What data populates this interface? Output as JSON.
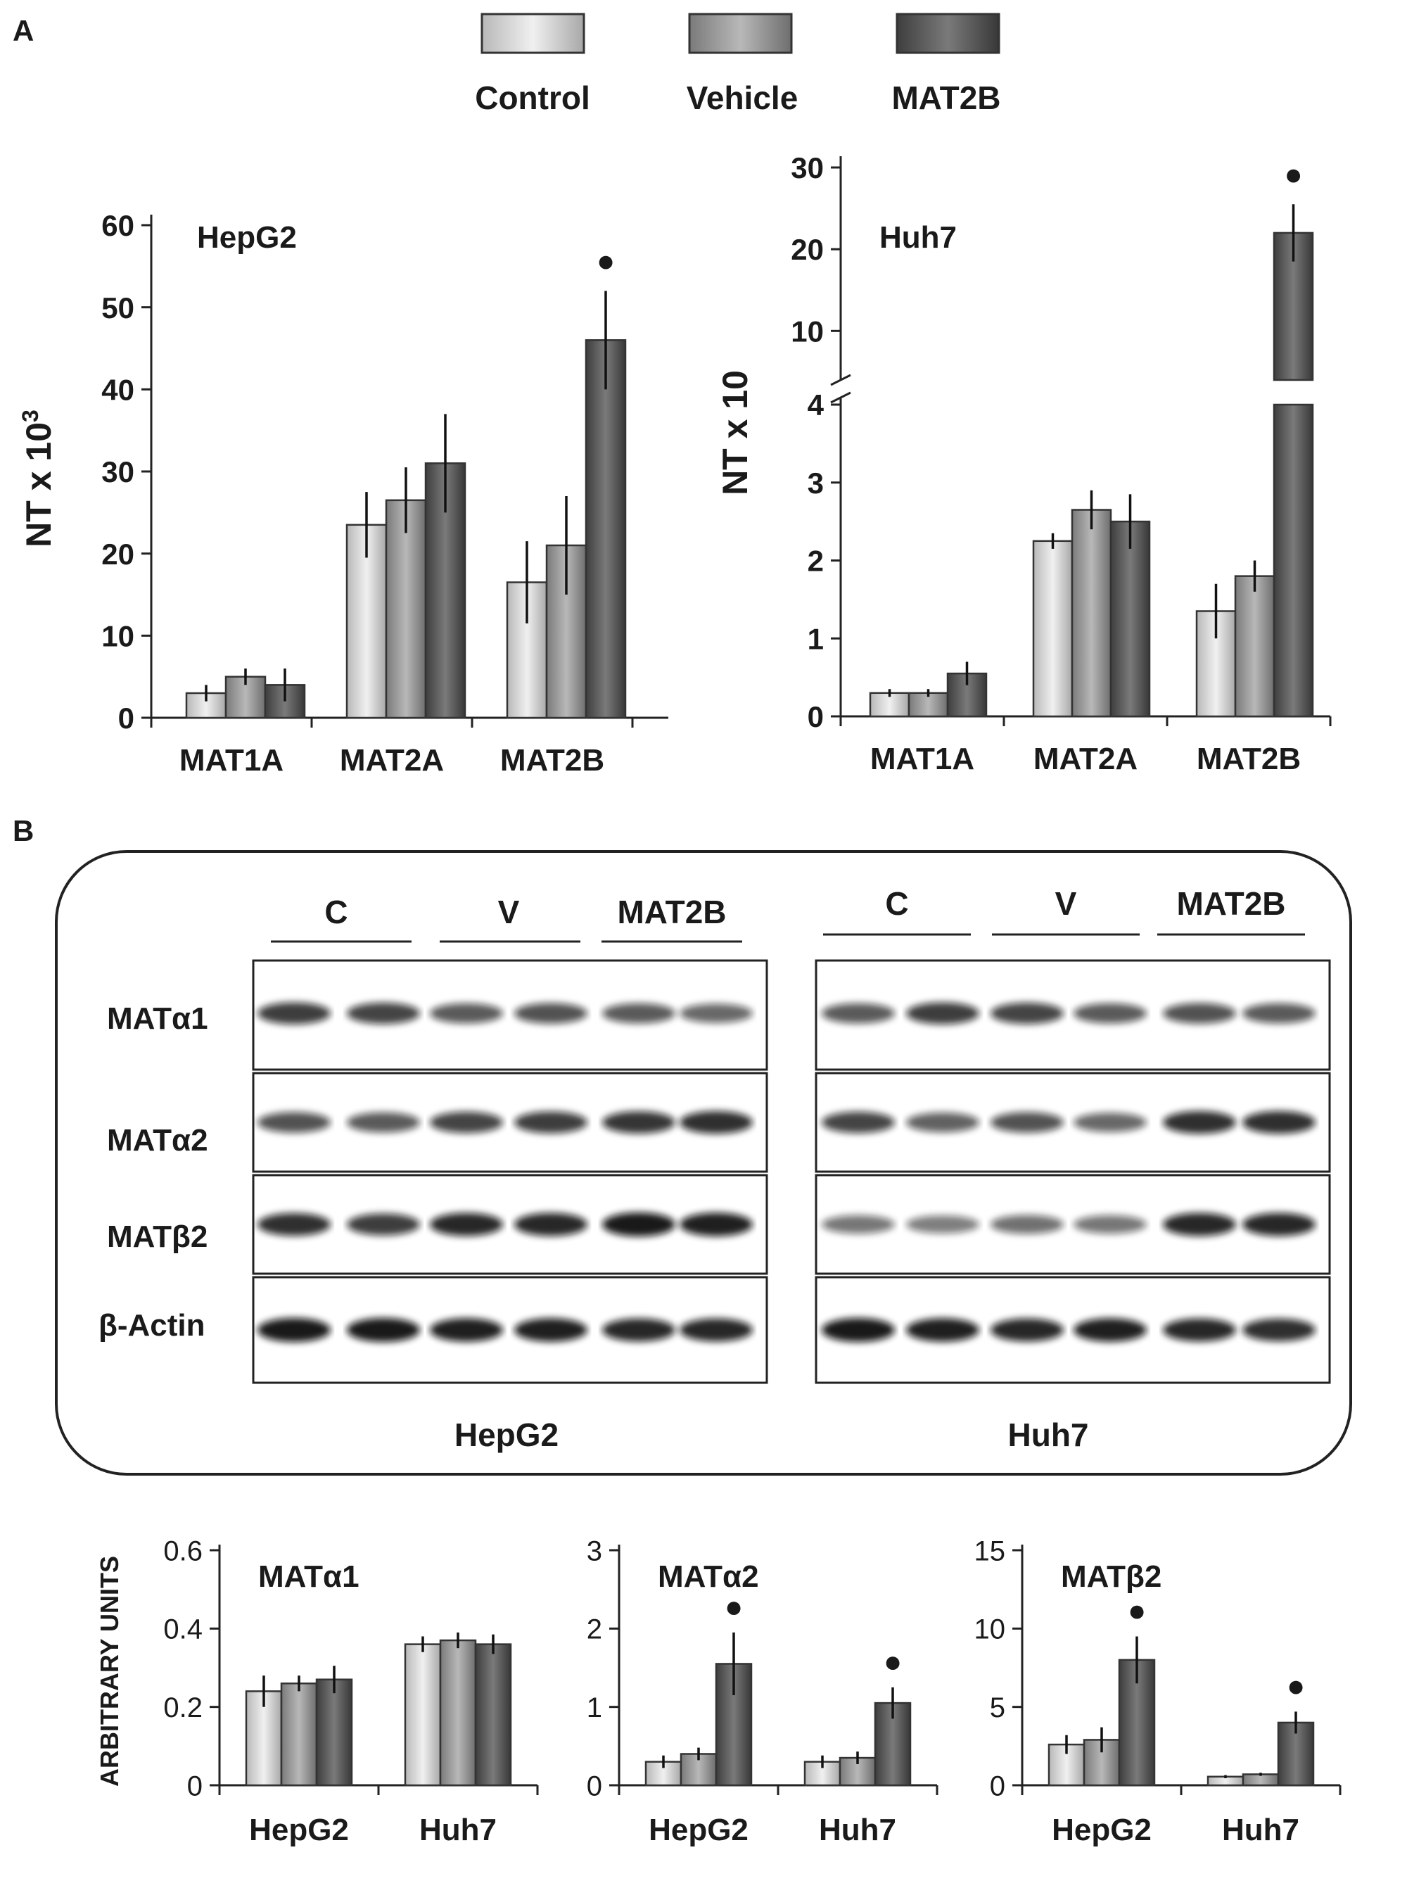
{
  "panel_labels": {
    "a": "A",
    "b": "B"
  },
  "legend": [
    {
      "label": "Control",
      "color": "#d8d8d8"
    },
    {
      "label": "Vehicle",
      "color": "#a6a6a6"
    },
    {
      "label": "MAT2B",
      "color": "#676767"
    }
  ],
  "significance_marker": "●",
  "blot": {
    "hepg2_group_labels": [
      "C",
      "V",
      "MAT2B"
    ],
    "huh7_group_labels": [
      "C",
      "V",
      "MAT2B"
    ],
    "row_labels": [
      "MATα1",
      "MATα2",
      "MATβ2",
      "β-Actin"
    ],
    "cell_labels": [
      "HepG2",
      "Huh7"
    ]
  },
  "chart_data": [
    {
      "type": "bar",
      "id": "hepg2_mrna",
      "title": "HepG2",
      "ylabel": "NT x 10",
      "ylabel_sup": "3",
      "categories": [
        "MAT1A",
        "MAT2A",
        "MAT2B"
      ],
      "ylim": [
        0,
        60
      ],
      "yticks": [
        "0",
        "10",
        "20",
        "30",
        "40",
        "50",
        "60"
      ],
      "series": [
        {
          "name": "Control",
          "values": [
            3,
            23.5,
            16.5
          ],
          "errors": [
            1,
            4,
            5
          ]
        },
        {
          "name": "Vehicle",
          "values": [
            5,
            26.5,
            21
          ],
          "errors": [
            1,
            4,
            6
          ]
        },
        {
          "name": "MAT2B",
          "values": [
            4,
            31,
            46
          ],
          "errors": [
            2,
            6,
            6
          ]
        }
      ],
      "significant": [
        [
          2,
          2
        ]
      ]
    },
    {
      "type": "bar",
      "id": "huh7_mrna",
      "title": "Huh7",
      "ylabel": "NT x 10",
      "categories": [
        "MAT1A",
        "MAT2A",
        "MAT2B"
      ],
      "broken_axis": true,
      "lower_ylim": [
        0,
        4
      ],
      "upper_ylim": [
        4,
        30
      ],
      "yticks_lower": [
        "0",
        "1",
        "2",
        "3",
        "4"
      ],
      "yticks_upper": [
        "10",
        "20",
        "30"
      ],
      "series": [
        {
          "name": "Control",
          "values": [
            0.3,
            2.25,
            1.35
          ],
          "errors": [
            0.05,
            0.1,
            0.35
          ]
        },
        {
          "name": "Vehicle",
          "values": [
            0.3,
            2.65,
            1.8
          ],
          "errors": [
            0.05,
            0.25,
            0.2
          ]
        },
        {
          "name": "MAT2B",
          "values": [
            0.55,
            2.5,
            22
          ],
          "errors": [
            0.15,
            0.35,
            3.5
          ]
        }
      ],
      "significant": [
        [
          2,
          2
        ]
      ]
    },
    {
      "type": "bar",
      "id": "mat_a1_protein",
      "title": "MATα1",
      "ylabel": "ARBITRARY UNITS",
      "categories": [
        "HepG2",
        "Huh7"
      ],
      "ylim": [
        0,
        0.6
      ],
      "yticks": [
        "0",
        "0.2",
        "0.4",
        "0.6"
      ],
      "series": [
        {
          "name": "Control",
          "values": [
            0.24,
            0.36
          ],
          "errors": [
            0.04,
            0.02
          ]
        },
        {
          "name": "Vehicle",
          "values": [
            0.26,
            0.37
          ],
          "errors": [
            0.02,
            0.02
          ]
        },
        {
          "name": "MAT2B",
          "values": [
            0.27,
            0.36
          ],
          "errors": [
            0.035,
            0.025
          ]
        }
      ],
      "significant": []
    },
    {
      "type": "bar",
      "id": "mat_a2_protein",
      "title": "MATα2",
      "categories": [
        "HepG2",
        "Huh7"
      ],
      "ylim": [
        0,
        3
      ],
      "yticks": [
        "0",
        "1",
        "2",
        "3"
      ],
      "series": [
        {
          "name": "Control",
          "values": [
            0.3,
            0.3
          ],
          "errors": [
            0.08,
            0.08
          ]
        },
        {
          "name": "Vehicle",
          "values": [
            0.4,
            0.35
          ],
          "errors": [
            0.08,
            0.08
          ]
        },
        {
          "name": "MAT2B",
          "values": [
            1.55,
            1.05
          ],
          "errors": [
            0.4,
            0.2
          ]
        }
      ],
      "significant": [
        [
          0,
          2
        ],
        [
          1,
          2
        ]
      ]
    },
    {
      "type": "bar",
      "id": "mat_b2_protein",
      "title": "MATβ2",
      "categories": [
        "HepG2",
        "Huh7"
      ],
      "ylim": [
        0,
        15
      ],
      "yticks": [
        "0",
        "5",
        "10",
        "15"
      ],
      "series": [
        {
          "name": "Control",
          "values": [
            2.6,
            0.55
          ],
          "errors": [
            0.6,
            0.1
          ]
        },
        {
          "name": "Vehicle",
          "values": [
            2.9,
            0.7
          ],
          "errors": [
            0.8,
            0.1
          ]
        },
        {
          "name": "MAT2B",
          "values": [
            8.0,
            4.0
          ],
          "errors": [
            1.5,
            0.7
          ]
        }
      ],
      "significant": [
        [
          0,
          2
        ],
        [
          1,
          2
        ]
      ]
    }
  ]
}
